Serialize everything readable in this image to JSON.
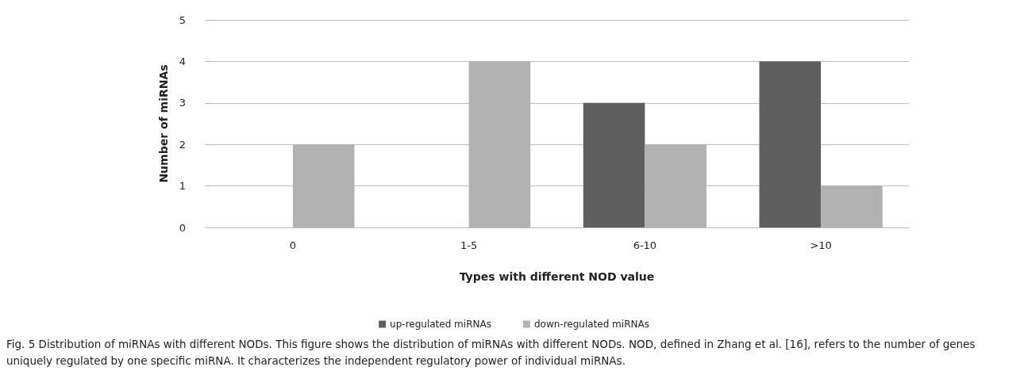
{
  "chart_data": {
    "type": "bar",
    "xlabel": "Types with different NOD value",
    "ylabel": "Number of miRNAs",
    "categories": [
      "0",
      "1-5",
      "6-10",
      ">10"
    ],
    "series": [
      {
        "name": "up-regulated miRNAs",
        "color": "#5f5f5f",
        "values": [
          0,
          0,
          3,
          4
        ]
      },
      {
        "name": "down-regulated miRNAs",
        "color": "#b2b2b2",
        "values": [
          2,
          4,
          2,
          1
        ]
      }
    ],
    "ylim": [
      0,
      5
    ],
    "yticks": [
      0,
      1,
      2,
      3,
      4,
      5
    ],
    "grid": "y",
    "legend": "bottom",
    "annotations": [
      "Fig. 5 Distribution of miRNAs with different NODs. This figure shows the distribution of miRNAs with different NODs. NOD, defined in Zhang et al. [16], refers to the number of genes uniquely regulated by one specific miRNA. It characterizes the independent regulatory power of individual miRNAs."
    ]
  }
}
